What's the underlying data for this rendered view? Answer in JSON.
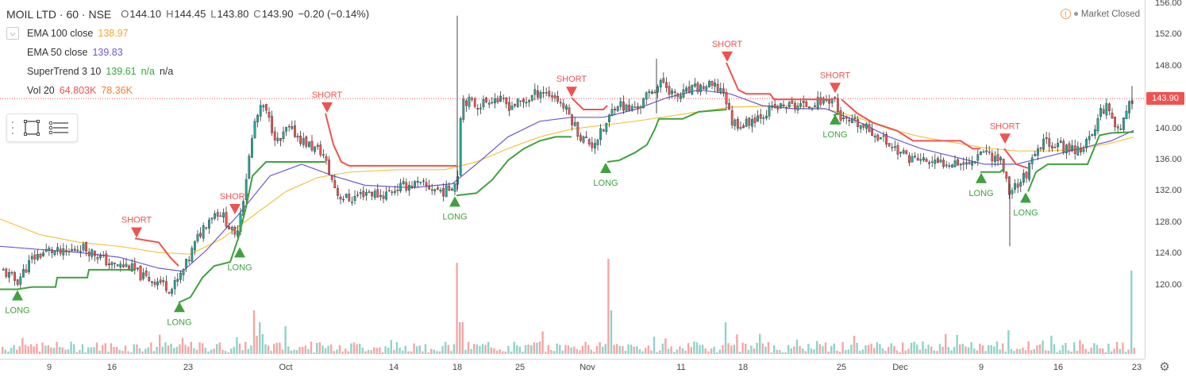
{
  "header": {
    "symbol": "MOIL LTD · 60 · NSE",
    "ohlc": {
      "o_label": "O",
      "o": "144.10",
      "h_label": "H",
      "h": "144.45",
      "l_label": "L",
      "l": "143.80",
      "c_label": "C",
      "c": "143.90",
      "change": "−0.20 (−0.14%)"
    }
  },
  "indicators": {
    "ema100": {
      "label": "EMA 100 close",
      "value": "138.97"
    },
    "ema50": {
      "label": "EMA 50 close",
      "value": "139.83"
    },
    "supertrend": {
      "label": "SuperTrend 3 10",
      "value": "139.61",
      "v2": "n/a",
      "v3": "n/a"
    },
    "volume": {
      "label": "Vol 20",
      "value": "64.803K",
      "value2": "78.36K"
    }
  },
  "market_status": "Market Closed",
  "price_axis": {
    "labels": [
      "156.00",
      "152.00",
      "148.00",
      "144.00",
      "140.00",
      "136.00",
      "132.00",
      "128.00",
      "124.00",
      "120.00"
    ],
    "current_price": "143.90"
  },
  "time_axis": {
    "labels": [
      "9",
      "16",
      "23",
      "Oct",
      "14",
      "18",
      "25",
      "Nov",
      "11",
      "18",
      "25",
      "Dec",
      "9",
      "16",
      "23"
    ]
  },
  "signals": {
    "long": "LONG",
    "short": "SHORT"
  },
  "colors": {
    "up": "#26a69a",
    "down": "#ef5350",
    "ema100": "#f5c242",
    "ema50": "#6a5acd",
    "st_up": "#3fa13f",
    "st_down": "#ef5350",
    "vol_up": "#8fd3c9",
    "vol_down": "#f4a6a4"
  },
  "icons": {
    "toolbox": [
      "drag-handle-icon",
      "rectangle-tool-icon",
      "menu-lines-icon"
    ],
    "settings": "gear-icon",
    "collapse": "chevron-down-icon"
  },
  "chart_data": {
    "type": "candlestick",
    "ylim": [
      116,
      156
    ],
    "last_price": 143.9,
    "price_path": [
      [
        0,
        122
      ],
      [
        20,
        120.5
      ],
      [
        40,
        123.5
      ],
      [
        60,
        124.5
      ],
      [
        80,
        124
      ],
      [
        100,
        125
      ],
      [
        120,
        124
      ],
      [
        140,
        122.5
      ],
      [
        160,
        122.5
      ],
      [
        180,
        121
      ],
      [
        200,
        120.5
      ],
      [
        215,
        119.5
      ],
      [
        225,
        121
      ],
      [
        235,
        123
      ],
      [
        245,
        125.5
      ],
      [
        255,
        127.5
      ],
      [
        265,
        129
      ],
      [
        275,
        129.5
      ],
      [
        285,
        128
      ],
      [
        295,
        126
      ],
      [
        305,
        131
      ],
      [
        312,
        136
      ],
      [
        320,
        141
      ],
      [
        330,
        143
      ],
      [
        340,
        140.5
      ],
      [
        350,
        138
      ],
      [
        360,
        140
      ],
      [
        370,
        139.5
      ],
      [
        380,
        138.5
      ],
      [
        395,
        137.5
      ],
      [
        405,
        137
      ],
      [
        415,
        134
      ],
      [
        425,
        131.5
      ],
      [
        440,
        131
      ],
      [
        460,
        132
      ],
      [
        480,
        131.5
      ],
      [
        500,
        132.5
      ],
      [
        520,
        133
      ],
      [
        540,
        132.5
      ],
      [
        560,
        132
      ],
      [
        575,
        133.5
      ],
      [
        580,
        144
      ],
      [
        600,
        143
      ],
      [
        620,
        144
      ],
      [
        640,
        143
      ],
      [
        660,
        143.5
      ],
      [
        680,
        145
      ],
      [
        700,
        144
      ],
      [
        715,
        142
      ],
      [
        730,
        139
      ],
      [
        745,
        138
      ],
      [
        760,
        140
      ],
      [
        775,
        143.5
      ],
      [
        790,
        142.5
      ],
      [
        805,
        143
      ],
      [
        820,
        145
      ],
      [
        835,
        146
      ],
      [
        850,
        144
      ],
      [
        870,
        145
      ],
      [
        890,
        145.5
      ],
      [
        910,
        145
      ],
      [
        915,
        143
      ],
      [
        920,
        141
      ],
      [
        935,
        140.5
      ],
      [
        950,
        141.5
      ],
      [
        970,
        142.5
      ],
      [
        990,
        143
      ],
      [
        1010,
        143
      ],
      [
        1030,
        143.5
      ],
      [
        1050,
        144
      ],
      [
        1055,
        142
      ],
      [
        1060,
        141
      ],
      [
        1080,
        140.5
      ],
      [
        1100,
        139.5
      ],
      [
        1120,
        138
      ],
      [
        1140,
        136.5
      ],
      [
        1160,
        136
      ],
      [
        1180,
        135.5
      ],
      [
        1200,
        136
      ],
      [
        1220,
        135.5
      ],
      [
        1235,
        137.5
      ],
      [
        1250,
        136.5
      ],
      [
        1260,
        136
      ],
      [
        1270,
        132
      ],
      [
        1280,
        133
      ],
      [
        1290,
        134
      ],
      [
        1300,
        136
      ],
      [
        1315,
        138.5
      ],
      [
        1330,
        138
      ],
      [
        1345,
        137.5
      ],
      [
        1360,
        137.5
      ],
      [
        1375,
        139
      ],
      [
        1385,
        142.5
      ],
      [
        1395,
        143
      ],
      [
        1405,
        140
      ],
      [
        1415,
        141
      ],
      [
        1425,
        143.9
      ]
    ],
    "ema100": [
      [
        0,
        128.5
      ],
      [
        50,
        126.5
      ],
      [
        100,
        125.5
      ],
      [
        150,
        125
      ],
      [
        200,
        124.2
      ],
      [
        240,
        124
      ],
      [
        280,
        126
      ],
      [
        320,
        129
      ],
      [
        360,
        132
      ],
      [
        400,
        133.8
      ],
      [
        440,
        134.5
      ],
      [
        500,
        134.8
      ],
      [
        560,
        134.8
      ],
      [
        600,
        135.8
      ],
      [
        640,
        137.5
      ],
      [
        680,
        139
      ],
      [
        720,
        140
      ],
      [
        760,
        140.5
      ],
      [
        800,
        141
      ],
      [
        840,
        141.6
      ],
      [
        880,
        142.2
      ],
      [
        920,
        142.8
      ],
      [
        960,
        142.9
      ],
      [
        1000,
        143
      ],
      [
        1040,
        142.6
      ],
      [
        1080,
        141.5
      ],
      [
        1120,
        140
      ],
      [
        1160,
        139
      ],
      [
        1200,
        138.3
      ],
      [
        1240,
        137.6
      ],
      [
        1280,
        137.2
      ],
      [
        1320,
        137.2
      ],
      [
        1360,
        137.4
      ],
      [
        1400,
        138.2
      ],
      [
        1428,
        138.97
      ]
    ],
    "ema50": [
      [
        0,
        125
      ],
      [
        50,
        124.6
      ],
      [
        100,
        124.2
      ],
      [
        150,
        123.6
      ],
      [
        200,
        122.2
      ],
      [
        230,
        121.8
      ],
      [
        260,
        124.5
      ],
      [
        300,
        129
      ],
      [
        340,
        134
      ],
      [
        380,
        135.5
      ],
      [
        420,
        134
      ],
      [
        460,
        132.8
      ],
      [
        520,
        132.5
      ],
      [
        570,
        133
      ],
      [
        600,
        135.5
      ],
      [
        640,
        139
      ],
      [
        680,
        141
      ],
      [
        720,
        141.5
      ],
      [
        760,
        141.5
      ],
      [
        800,
        142.5
      ],
      [
        840,
        144
      ],
      [
        880,
        145
      ],
      [
        920,
        144.5
      ],
      [
        960,
        143
      ],
      [
        1000,
        142.6
      ],
      [
        1040,
        142.6
      ],
      [
        1080,
        141
      ],
      [
        1120,
        139
      ],
      [
        1160,
        137.5
      ],
      [
        1200,
        136.5
      ],
      [
        1240,
        135.5
      ],
      [
        1280,
        135.5
      ],
      [
        1320,
        136.5
      ],
      [
        1360,
        137.5
      ],
      [
        1400,
        138.5
      ],
      [
        1428,
        139.83
      ]
    ],
    "supertrend": [
      {
        "state": "up",
        "points": [
          [
            0,
            119.5
          ],
          [
            20,
            119.5
          ],
          [
            22,
            119.5
          ],
          [
            40,
            119.8
          ],
          [
            70,
            119.8
          ],
          [
            72,
            121
          ],
          [
            110,
            121
          ],
          [
            112,
            122
          ],
          [
            170,
            122
          ]
        ]
      },
      {
        "state": "down",
        "points": [
          [
            170,
            126
          ],
          [
            200,
            125.5
          ],
          [
            215,
            123.5
          ],
          [
            225,
            122.5
          ]
        ]
      },
      {
        "state": "up",
        "points": [
          [
            225,
            117.8
          ],
          [
            240,
            118.5
          ],
          [
            255,
            121
          ],
          [
            270,
            122.5
          ],
          [
            290,
            123
          ],
          [
            300,
            126
          ],
          [
            310,
            130
          ],
          [
            318,
            134
          ],
          [
            335,
            135.8
          ],
          [
            410,
            135.8
          ]
        ]
      },
      {
        "state": "down",
        "points": [
          [
            410,
            142
          ],
          [
            420,
            138
          ],
          [
            430,
            135.8
          ],
          [
            440,
            135.3
          ],
          [
            575,
            135.3
          ]
        ]
      },
      {
        "state": "up",
        "points": [
          [
            575,
            131.5
          ],
          [
            600,
            131.8
          ],
          [
            620,
            133.5
          ],
          [
            640,
            136
          ],
          [
            660,
            137.5
          ],
          [
            680,
            138.5
          ],
          [
            700,
            139
          ],
          [
            720,
            139
          ]
        ]
      },
      {
        "state": "down",
        "points": [
          [
            720,
            144
          ],
          [
            735,
            142.5
          ],
          [
            760,
            142.5
          ],
          [
            765,
            143
          ]
        ]
      },
      {
        "state": "up",
        "points": [
          [
            765,
            135.8
          ],
          [
            780,
            136
          ],
          [
            800,
            137
          ],
          [
            815,
            138
          ],
          [
            825,
            140
          ],
          [
            830,
            141.3
          ],
          [
            860,
            141.3
          ],
          [
            880,
            142.2
          ],
          [
            915,
            142.5
          ]
        ]
      },
      {
        "state": "down",
        "points": [
          [
            915,
            148.5
          ],
          [
            930,
            145
          ],
          [
            940,
            144.5
          ],
          [
            970,
            144.5
          ],
          [
            975,
            143.8
          ],
          [
            1050,
            143.8
          ]
        ]
      },
      {
        "state": "up",
        "points": [
          [
            1050,
            141.8
          ],
          [
            1060,
            142
          ]
        ]
      },
      {
        "state": "down",
        "points": [
          [
            1060,
            143.8
          ],
          [
            1080,
            142
          ],
          [
            1100,
            140.8
          ],
          [
            1130,
            139.8
          ],
          [
            1150,
            138.5
          ],
          [
            1210,
            138.5
          ],
          [
            1225,
            137.5
          ],
          [
            1235,
            137.5
          ]
        ]
      },
      {
        "state": "up",
        "points": [
          [
            1235,
            134.5
          ],
          [
            1260,
            134.5
          ],
          [
            1265,
            135
          ]
        ]
      },
      {
        "state": "down",
        "points": [
          [
            1265,
            137.5
          ],
          [
            1280,
            135.5
          ],
          [
            1295,
            135
          ]
        ]
      },
      {
        "state": "up",
        "points": [
          [
            1295,
            132
          ],
          [
            1305,
            134.5
          ],
          [
            1320,
            135.5
          ],
          [
            1370,
            135.5
          ],
          [
            1385,
            139.2
          ],
          [
            1400,
            139.5
          ],
          [
            1428,
            139.61
          ]
        ]
      }
    ],
    "signals": [
      {
        "type": "long",
        "x": 22,
        "price": 119.5
      },
      {
        "type": "short",
        "x": 172,
        "price": 126
      },
      {
        "type": "long",
        "x": 226,
        "price": 118
      },
      {
        "type": "long",
        "x": 302,
        "price": 125
      },
      {
        "type": "short",
        "x": 296,
        "price": 129
      },
      {
        "type": "short",
        "x": 412,
        "price": 142
      },
      {
        "type": "long",
        "x": 573,
        "price": 131.5
      },
      {
        "type": "short",
        "x": 720,
        "price": 144
      },
      {
        "type": "long",
        "x": 763,
        "price": 135.8
      },
      {
        "type": "short",
        "x": 916,
        "price": 148.5
      },
      {
        "type": "short",
        "x": 1052,
        "price": 144.5
      },
      {
        "type": "long",
        "x": 1052,
        "price": 142
      },
      {
        "type": "long",
        "x": 1236,
        "price": 134.5
      },
      {
        "type": "short",
        "x": 1266,
        "price": 138
      },
      {
        "type": "long",
        "x": 1292,
        "price": 132
      }
    ]
  }
}
